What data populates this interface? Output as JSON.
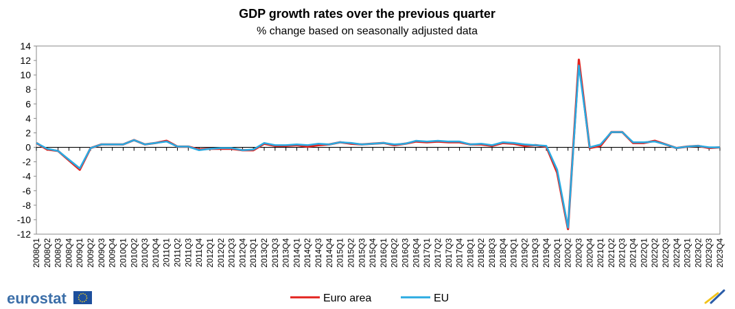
{
  "chart_data": {
    "type": "line",
    "title": "GDP growth rates over the previous quarter",
    "subtitle": "% change based on seasonally adjusted data",
    "xlabel": "",
    "ylabel": "",
    "ylim": [
      -12,
      14
    ],
    "yticks": [
      14,
      12,
      10,
      8,
      6,
      4,
      2,
      0,
      -2,
      -4,
      -6,
      -8,
      -10,
      -12
    ],
    "grid": false,
    "legend": "bottom-center",
    "categories": [
      "2008Q1",
      "2008Q2",
      "2008Q3",
      "2008Q4",
      "2009Q1",
      "2009Q2",
      "2009Q3",
      "2009Q4",
      "2010Q1",
      "2010Q2",
      "2010Q3",
      "2010Q4",
      "2011Q1",
      "2011Q2",
      "2011Q3",
      "2011Q4",
      "2012Q1",
      "2012Q2",
      "2012Q3",
      "2012Q4",
      "2013Q1",
      "2013Q2",
      "2013Q3",
      "2013Q4",
      "2014Q1",
      "2014Q2",
      "2014Q3",
      "2014Q4",
      "2015Q1",
      "2015Q2",
      "2015Q3",
      "2015Q4",
      "2016Q1",
      "2016Q2",
      "2016Q3",
      "2016Q4",
      "2017Q1",
      "2017Q2",
      "2017Q3",
      "2017Q4",
      "2018Q1",
      "2018Q2",
      "2018Q3",
      "2018Q4",
      "2019Q1",
      "2019Q2",
      "2019Q3",
      "2019Q4",
      "2020Q1",
      "2020Q2",
      "2020Q3",
      "2020Q4",
      "2021Q1",
      "2021Q2",
      "2021Q3",
      "2021Q4",
      "2022Q1",
      "2022Q2",
      "2022Q3",
      "2022Q4",
      "2023Q1",
      "2023Q2",
      "2023Q3",
      "2023Q4"
    ],
    "series": [
      {
        "name": "Euro area",
        "color": "#e3211c",
        "values": [
          0.6,
          -0.3,
          -0.5,
          -1.8,
          -3.1,
          -0.1,
          0.4,
          0.4,
          0.4,
          1.0,
          0.4,
          0.6,
          0.9,
          0.1,
          0.1,
          -0.3,
          -0.2,
          -0.2,
          -0.2,
          -0.4,
          -0.4,
          0.5,
          0.2,
          0.2,
          0.3,
          0.1,
          0.3,
          0.4,
          0.7,
          0.5,
          0.4,
          0.5,
          0.6,
          0.3,
          0.5,
          0.8,
          0.7,
          0.8,
          0.7,
          0.7,
          0.4,
          0.4,
          0.2,
          0.6,
          0.5,
          0.2,
          0.3,
          0.1,
          -3.5,
          -11.3,
          12.1,
          -0.1,
          0.2,
          2.1,
          2.1,
          0.6,
          0.6,
          0.9,
          0.4,
          -0.1,
          0.1,
          0.2,
          -0.1,
          0.0
        ]
      },
      {
        "name": "EU",
        "color": "#2aaae1",
        "values": [
          0.6,
          -0.2,
          -0.5,
          -1.7,
          -2.9,
          -0.1,
          0.4,
          0.4,
          0.4,
          1.0,
          0.4,
          0.6,
          0.8,
          0.1,
          0.1,
          -0.4,
          -0.2,
          -0.1,
          -0.1,
          -0.4,
          -0.3,
          0.6,
          0.3,
          0.3,
          0.4,
          0.3,
          0.5,
          0.4,
          0.7,
          0.6,
          0.4,
          0.5,
          0.6,
          0.4,
          0.5,
          0.9,
          0.8,
          0.9,
          0.8,
          0.8,
          0.4,
          0.5,
          0.3,
          0.7,
          0.6,
          0.4,
          0.3,
          0.2,
          -3.1,
          -11.1,
          11.3,
          0.0,
          0.4,
          2.1,
          2.1,
          0.7,
          0.7,
          0.8,
          0.4,
          -0.1,
          0.1,
          0.2,
          0.0,
          0.0
        ]
      }
    ]
  },
  "branding": {
    "logo_text": "eurostat"
  }
}
